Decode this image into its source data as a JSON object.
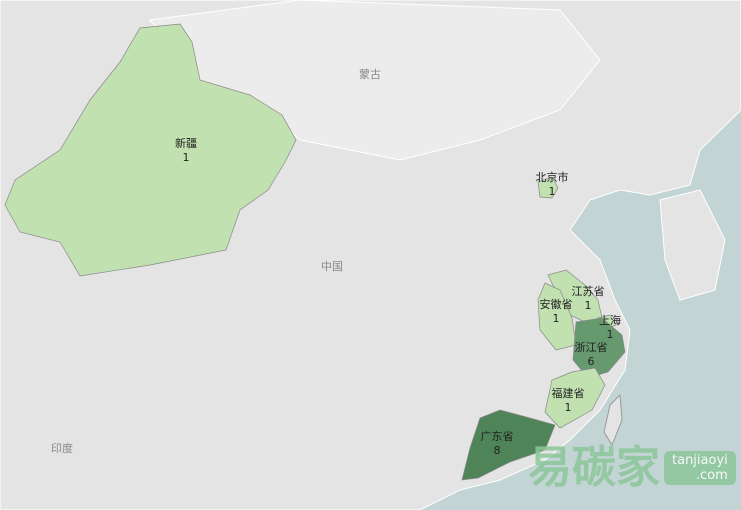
{
  "map": {
    "countries": [
      {
        "name": "蒙古"
      },
      {
        "name": "中国"
      },
      {
        "name": "印度"
      }
    ],
    "colors": {
      "ocean": "#c3d4d4",
      "land": "#e3e3e3",
      "low": "#c2e1b1",
      "mid": "#67996f",
      "high": "#4f8459"
    },
    "regions": [
      {
        "name": "新疆",
        "value": 1
      },
      {
        "name": "北京市",
        "value": 1
      },
      {
        "name": "江苏省",
        "value": 1
      },
      {
        "name": "安徽省",
        "value": 1
      },
      {
        "name": "上海",
        "value": 1
      },
      {
        "name": "浙江省",
        "value": 6
      },
      {
        "name": "福建省",
        "value": 1
      },
      {
        "name": "广东省",
        "value": 8
      }
    ]
  },
  "watermark": {
    "brand": "易碳家",
    "site_line1": "tanjiaoyi",
    "site_line2": ".com"
  }
}
